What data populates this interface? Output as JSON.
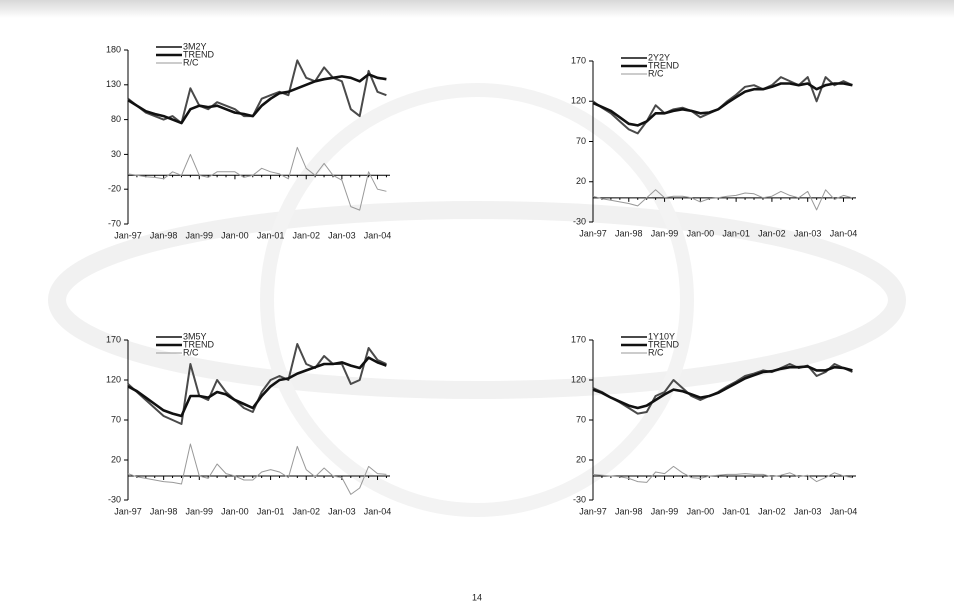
{
  "chart_data": [
    {
      "type": "line",
      "legend": "upper left",
      "grid": false,
      "categories": [
        "Jan-97",
        null,
        null,
        null,
        "Jan-98",
        null,
        null,
        null,
        "Jan-99",
        null,
        null,
        null,
        "Jan-00",
        null,
        null,
        null,
        "Jan-01",
        null,
        null,
        null,
        "Jan-02",
        null,
        null,
        null,
        "Jan-03",
        null,
        null,
        null,
        "Jan-04",
        null
      ],
      "ylim": [
        -70,
        180
      ],
      "yticks": [
        -70,
        -20,
        30,
        80,
        130,
        180
      ],
      "series": [
        {
          "name": "3M2Y",
          "color": "#4a4a4a",
          "values": [
            110,
            100,
            90,
            85,
            80,
            85,
            75,
            125,
            100,
            95,
            105,
            100,
            95,
            85,
            85,
            110,
            115,
            120,
            115,
            165,
            140,
            135,
            155,
            140,
            135,
            95,
            85,
            150,
            120,
            115
          ]
        },
        {
          "name": "TREND",
          "color": "#111111",
          "values": [
            108,
            100,
            92,
            88,
            85,
            80,
            75,
            95,
            100,
            98,
            100,
            95,
            90,
            88,
            85,
            100,
            110,
            118,
            120,
            125,
            130,
            135,
            138,
            140,
            142,
            140,
            135,
            145,
            140,
            138
          ]
        },
        {
          "name": "R/C",
          "color": "#999999",
          "values": [
            2,
            0,
            -2,
            -3,
            -5,
            5,
            0,
            30,
            0,
            -3,
            5,
            5,
            5,
            -3,
            0,
            10,
            5,
            2,
            -5,
            40,
            10,
            0,
            17,
            0,
            -7,
            -45,
            -50,
            5,
            -20,
            -23
          ]
        }
      ]
    },
    {
      "type": "line",
      "legend": "upper left",
      "grid": false,
      "categories": [
        "Jan-97",
        null,
        null,
        null,
        "Jan-98",
        null,
        null,
        null,
        "Jan-99",
        null,
        null,
        null,
        "Jan-00",
        null,
        null,
        null,
        "Jan-01",
        null,
        null,
        null,
        "Jan-02",
        null,
        null,
        null,
        "Jan-03",
        null,
        null,
        null,
        "Jan-04",
        null
      ],
      "ylim": [
        -30,
        170
      ],
      "yticks": [
        -30,
        20,
        70,
        120,
        170
      ],
      "series": [
        {
          "name": "2Y2Y",
          "color": "#4a4a4a",
          "values": [
            120,
            112,
            105,
            95,
            85,
            80,
            95,
            115,
            105,
            110,
            112,
            108,
            100,
            105,
            110,
            120,
            128,
            138,
            140,
            135,
            140,
            150,
            145,
            140,
            150,
            120,
            150,
            140,
            145,
            140
          ]
        },
        {
          "name": "TREND",
          "color": "#111111",
          "values": [
            118,
            113,
            108,
            100,
            92,
            90,
            95,
            105,
            105,
            108,
            110,
            108,
            105,
            106,
            110,
            118,
            125,
            132,
            135,
            135,
            138,
            142,
            142,
            140,
            142,
            135,
            140,
            142,
            142,
            140
          ]
        },
        {
          "name": "R/C",
          "color": "#999999",
          "values": [
            2,
            -1,
            -3,
            -5,
            -7,
            -10,
            0,
            10,
            0,
            2,
            2,
            0,
            -5,
            -1,
            0,
            2,
            3,
            6,
            5,
            0,
            2,
            8,
            3,
            0,
            8,
            -15,
            10,
            -2,
            3,
            0
          ]
        }
      ]
    },
    {
      "type": "line",
      "legend": "upper left",
      "grid": false,
      "categories": [
        "Jan-97",
        null,
        null,
        null,
        "Jan-98",
        null,
        null,
        null,
        "Jan-99",
        null,
        null,
        null,
        "Jan-00",
        null,
        null,
        null,
        "Jan-01",
        null,
        null,
        null,
        "Jan-02",
        null,
        null,
        null,
        "Jan-03",
        null,
        null,
        null,
        "Jan-04",
        null
      ],
      "ylim": [
        -30,
        170
      ],
      "yticks": [
        -30,
        20,
        70,
        120,
        170
      ],
      "series": [
        {
          "name": "3M5Y",
          "color": "#4a4a4a",
          "values": [
            115,
            105,
            95,
            85,
            75,
            70,
            65,
            140,
            100,
            95,
            120,
            105,
            95,
            85,
            80,
            105,
            120,
            125,
            120,
            165,
            140,
            135,
            150,
            140,
            140,
            115,
            120,
            160,
            145,
            140
          ]
        },
        {
          "name": "TREND",
          "color": "#111111",
          "values": [
            112,
            106,
            98,
            90,
            82,
            78,
            75,
            100,
            100,
            98,
            105,
            102,
            95,
            90,
            85,
            100,
            112,
            120,
            122,
            128,
            132,
            136,
            140,
            140,
            142,
            138,
            135,
            148,
            142,
            138
          ]
        },
        {
          "name": "R/C",
          "color": "#999999",
          "values": [
            3,
            -1,
            -3,
            -5,
            -7,
            -8,
            -10,
            40,
            0,
            -3,
            15,
            3,
            0,
            -5,
            -5,
            5,
            8,
            5,
            -2,
            37,
            8,
            -1,
            10,
            0,
            -2,
            -23,
            -15,
            12,
            3,
            2
          ]
        }
      ]
    },
    {
      "type": "line",
      "legend": "upper left",
      "grid": false,
      "categories": [
        "Jan-97",
        null,
        null,
        null,
        "Jan-98",
        null,
        null,
        null,
        "Jan-99",
        null,
        null,
        null,
        "Jan-00",
        null,
        null,
        null,
        "Jan-01",
        null,
        null,
        null,
        "Jan-02",
        null,
        null,
        null,
        "Jan-03",
        null,
        null,
        null,
        "Jan-04",
        null
      ],
      "ylim": [
        -30,
        170
      ],
      "yticks": [
        -30,
        20,
        70,
        120,
        170
      ],
      "series": [
        {
          "name": "1Y10Y",
          "color": "#4a4a4a",
          "values": [
            110,
            105,
            98,
            92,
            85,
            78,
            80,
            100,
            105,
            120,
            110,
            100,
            95,
            100,
            105,
            112,
            118,
            125,
            128,
            132,
            130,
            135,
            140,
            135,
            138,
            125,
            130,
            140,
            135,
            130
          ]
        },
        {
          "name": "TREND",
          "color": "#111111",
          "values": [
            108,
            104,
            98,
            93,
            88,
            85,
            88,
            95,
            102,
            108,
            106,
            102,
            98,
            100,
            104,
            110,
            116,
            122,
            126,
            130,
            131,
            134,
            136,
            136,
            137,
            132,
            132,
            136,
            135,
            132
          ]
        },
        {
          "name": "R/C",
          "color": "#999999",
          "values": [
            2,
            1,
            0,
            -1,
            -3,
            -7,
            -8,
            5,
            3,
            12,
            4,
            -2,
            -3,
            0,
            1,
            2,
            2,
            3,
            2,
            2,
            -1,
            1,
            4,
            -1,
            1,
            -7,
            -2,
            4,
            0,
            -2
          ]
        }
      ]
    }
  ],
  "page_number": "14"
}
